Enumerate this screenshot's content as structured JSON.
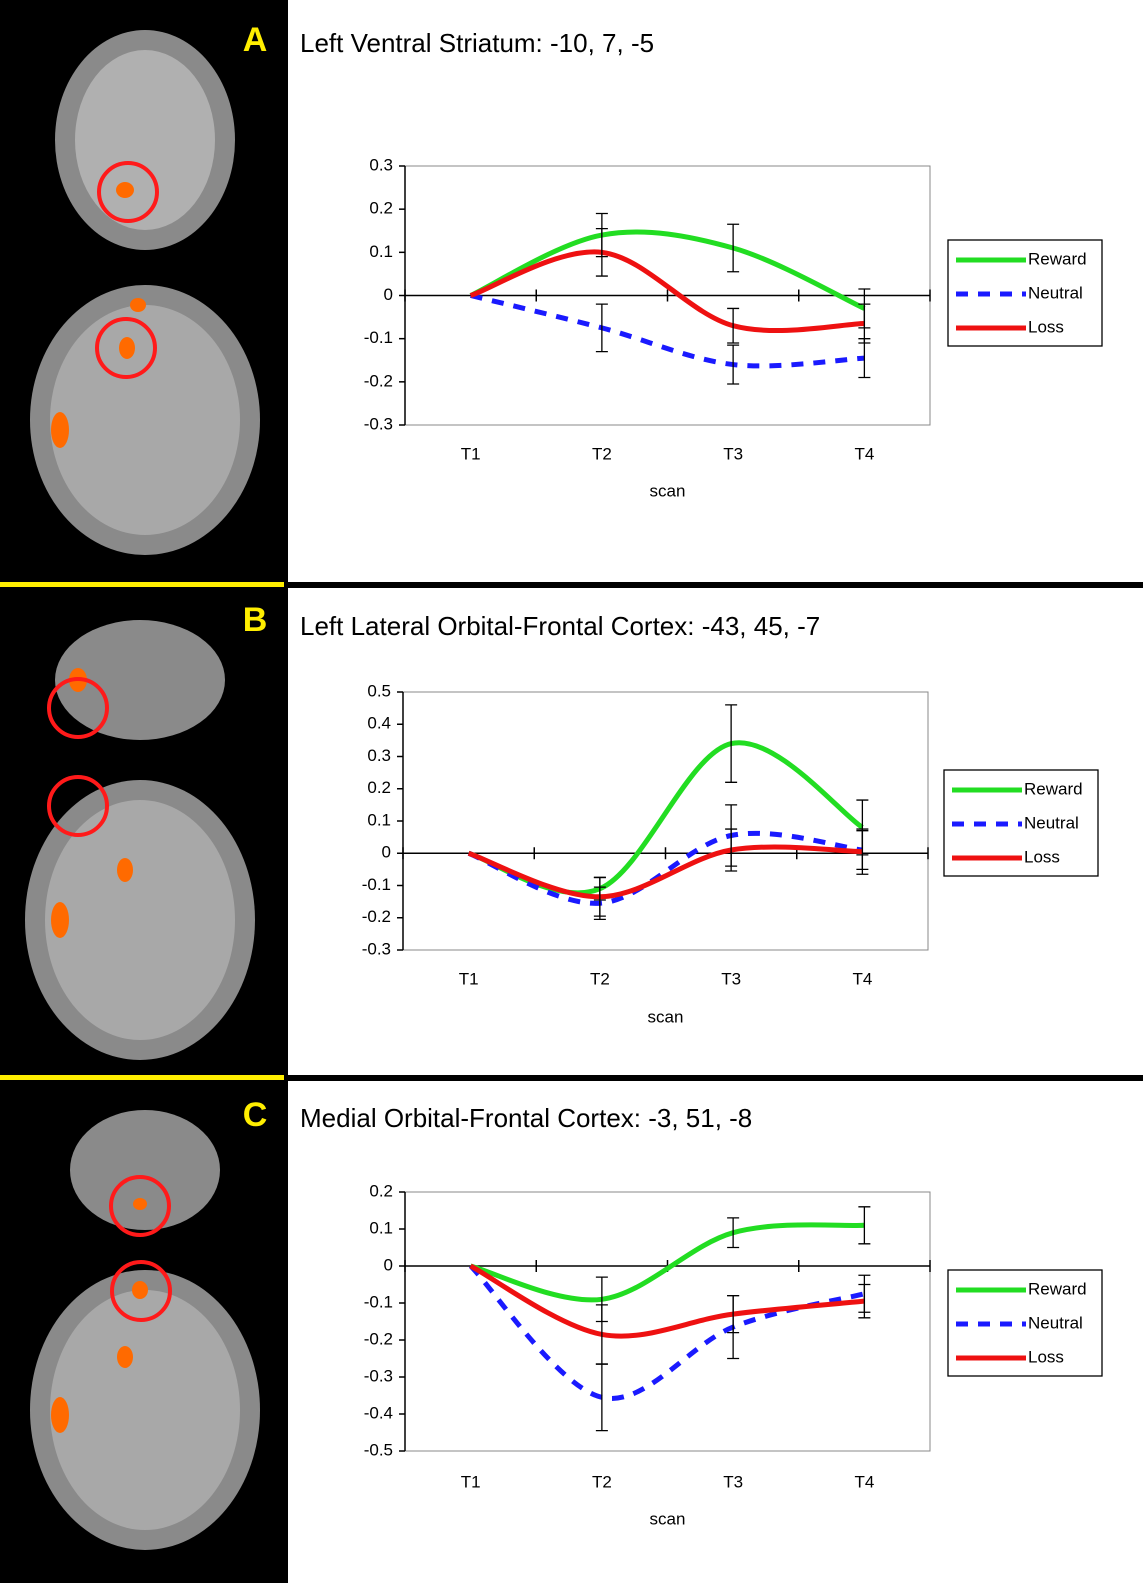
{
  "chart_data": [
    {
      "type": "line",
      "panel_label": "A",
      "title": "Left Ventral Striatum: -10, 7, -5",
      "x_label": "scan",
      "categories": [
        "T1",
        "T2",
        "T3",
        "T4"
      ],
      "series": [
        {
          "name": "Reward",
          "color": "#22dd22",
          "style": "solid",
          "values": [
            0,
            0.14,
            0.11,
            -0.03
          ],
          "errors": [
            null,
            0.05,
            0.055,
            0.045
          ]
        },
        {
          "name": "Neutral",
          "color": "#1a1aff",
          "style": "dashed",
          "values": [
            0,
            -0.075,
            -0.16,
            -0.145
          ],
          "errors": [
            null,
            0.055,
            0.045,
            0.045
          ]
        },
        {
          "name": "Loss",
          "color": "#ee1111",
          "style": "solid",
          "values": [
            0,
            0.1,
            -0.07,
            -0.065
          ],
          "errors": [
            null,
            0.055,
            0.04,
            0.045
          ]
        }
      ],
      "ylim": [
        -0.3,
        0.3
      ],
      "yticks": [
        -0.3,
        -0.2,
        -0.1,
        0,
        0.1,
        0.2,
        0.3
      ],
      "legend": "right"
    },
    {
      "type": "line",
      "panel_label": "B",
      "title": "Left Lateral Orbital-Frontal Cortex: -43, 45, -7",
      "x_label": "scan",
      "categories": [
        "T1",
        "T2",
        "T3",
        "T4"
      ],
      "series": [
        {
          "name": "Reward",
          "color": "#22dd22",
          "style": "solid",
          "values": [
            0,
            -0.11,
            0.34,
            0.08
          ],
          "errors": [
            null,
            0.035,
            0.12,
            0.085
          ]
        },
        {
          "name": "Neutral",
          "color": "#1a1aff",
          "style": "dashed",
          "values": [
            0,
            -0.155,
            0.055,
            0.01
          ],
          "errors": [
            null,
            0.05,
            0.095,
            0.06
          ]
        },
        {
          "name": "Loss",
          "color": "#ee1111",
          "style": "solid",
          "values": [
            0,
            -0.135,
            0.01,
            0.005
          ],
          "errors": [
            null,
            0.06,
            0.065,
            0.07
          ]
        }
      ],
      "ylim": [
        -0.3,
        0.5
      ],
      "yticks": [
        -0.3,
        -0.2,
        -0.1,
        0,
        0.1,
        0.2,
        0.3,
        0.4,
        0.5
      ],
      "legend": "right"
    },
    {
      "type": "line",
      "panel_label": "C",
      "title": "Medial Orbital-Frontal Cortex: -3, 51, -8",
      "x_label": "scan",
      "categories": [
        "T1",
        "T2",
        "T3",
        "T4"
      ],
      "series": [
        {
          "name": "Reward",
          "color": "#22dd22",
          "style": "solid",
          "values": [
            0,
            -0.09,
            0.09,
            0.11
          ],
          "errors": [
            null,
            0.06,
            0.04,
            0.05
          ]
        },
        {
          "name": "Neutral",
          "color": "#1a1aff",
          "style": "dashed",
          "values": [
            0,
            -0.355,
            -0.165,
            -0.075
          ],
          "errors": [
            null,
            0.09,
            0.085,
            0.05
          ]
        },
        {
          "name": "Loss",
          "color": "#ee1111",
          "style": "solid",
          "values": [
            0,
            -0.185,
            -0.13,
            -0.095
          ],
          "errors": [
            null,
            0.08,
            0.05,
            0.045
          ]
        }
      ],
      "ylim": [
        -0.5,
        0.2
      ],
      "yticks": [
        -0.5,
        -0.4,
        -0.3,
        -0.2,
        -0.1,
        0,
        0.1,
        0.2
      ],
      "legend": "right"
    }
  ]
}
